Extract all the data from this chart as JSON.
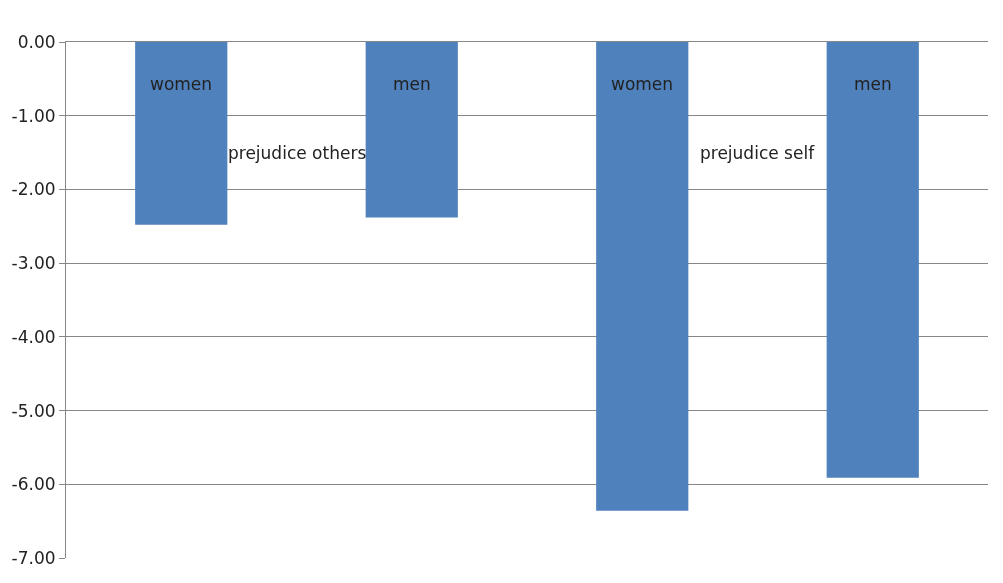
{
  "chart_data": {
    "type": "bar",
    "categories": [
      "women",
      "men",
      "women",
      "men"
    ],
    "values": [
      -2.48,
      -2.38,
      -6.36,
      -5.91
    ],
    "color": "#4f81bd",
    "ylim": [
      -7,
      0
    ],
    "yticks": [
      {
        "value": 0,
        "label": "0.00"
      },
      {
        "value": -1,
        "label": "-1.00"
      },
      {
        "value": -2,
        "label": "-2.00"
      },
      {
        "value": -3,
        "label": "-3.00"
      },
      {
        "value": -4,
        "label": "-4.00"
      },
      {
        "value": -5,
        "label": "-5.00"
      },
      {
        "value": -6,
        "label": "-6.00"
      },
      {
        "value": -7,
        "label": "-7.00"
      }
    ],
    "annotations": [
      "prejudice others",
      "prejudice self"
    ],
    "grid": "y"
  }
}
